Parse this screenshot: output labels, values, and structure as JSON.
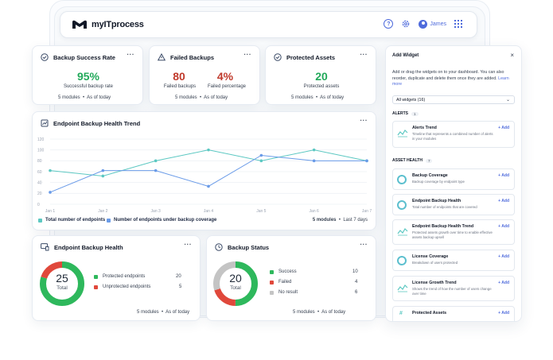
{
  "app": {
    "name": "myITprocess"
  },
  "topbar": {
    "help_icon": "question-icon",
    "settings_icon": "gear-icon",
    "user_name": "James",
    "apps_icon": "grid-icon"
  },
  "colors": {
    "accent": "#4f6bdc",
    "success": "#22a95a",
    "danger": "#c0392b",
    "teal": "#5cc8c2",
    "blue": "#6a9be8",
    "gray": "#c8c8c8"
  },
  "kpis": {
    "backup_success": {
      "title": "Backup Success Rate",
      "value": "95%",
      "label": "Successful backup rate",
      "modules": "5 modules",
      "range": "As of today"
    },
    "failed_backups": {
      "title": "Failed Backups",
      "value_count": "80",
      "value_pct": "4%",
      "label_count": "Failed backups",
      "label_pct": "Failed percentage",
      "modules": "5 modules",
      "range": "As of today"
    },
    "protected_assets": {
      "title": "Protected Assets",
      "value": "20",
      "label": "Protected assets",
      "modules": "5 modules",
      "range": "As of today"
    }
  },
  "trend": {
    "title": "Endpoint Backup Health Trend",
    "legend_total": "Total number of endpoints",
    "legend_under": "Number of endpoints under backup coverage",
    "modules": "5 modules",
    "range": "Last 7 days"
  },
  "chart_data": {
    "type": "line",
    "x": [
      "Jan 1",
      "Jan 2",
      "Jan 3",
      "Jan 4",
      "Jan 5",
      "Jan 6",
      "Jan 7"
    ],
    "ylim": [
      0,
      120
    ],
    "yticks": [
      0,
      20,
      40,
      60,
      80,
      100,
      120
    ],
    "series": [
      {
        "name": "Total number of endpoints",
        "color": "#5cc8c2",
        "values": [
          62,
          52,
          80,
          100,
          80,
          100,
          80
        ]
      },
      {
        "name": "Number of endpoints under backup coverage",
        "color": "#6a9be8",
        "values": [
          22,
          62,
          62,
          33,
          90,
          80,
          80
        ]
      }
    ]
  },
  "endpoint_health": {
    "title": "Endpoint Backup Health",
    "total": "25",
    "total_label": "Total",
    "items": [
      {
        "label": "Protected endpoints",
        "value": "20",
        "color": "#2eb85c"
      },
      {
        "label": "Unprotected endpoints",
        "value": "5",
        "color": "#e0483b"
      }
    ],
    "modules": "5 modules",
    "range": "As of today"
  },
  "backup_status": {
    "title": "Backup Status",
    "total": "20",
    "total_label": "Total",
    "items": [
      {
        "label": "Success",
        "value": "10",
        "color": "#2eb85c"
      },
      {
        "label": "Failed",
        "value": "4",
        "color": "#e0483b"
      },
      {
        "label": "No result",
        "value": "6",
        "color": "#c4c4c4"
      }
    ],
    "modules": "5 modules",
    "range": "As of today"
  },
  "add_widget": {
    "title": "Add Widget",
    "close": "×",
    "description": "Add or drag the widgets on to your dashboard. You can also reorder, duplicate and delete them once they are added.",
    "learn_more": "Learn more",
    "filter_value": "All widgets (16)",
    "sections": [
      {
        "name": "ALERTS",
        "count": "1"
      },
      {
        "name": "ASSET HEALTH",
        "count": "7"
      }
    ],
    "add_label": "+ Add",
    "widgets": [
      {
        "title": "Alerts Trend",
        "desc": "Timeline that represents a combined number of alerts in your modules"
      },
      {
        "title": "Backup Coverage",
        "desc": "Backup coverage by endpoint type"
      },
      {
        "title": "Endpoint Backup Health",
        "desc": "Total number of endpoints that are covered"
      },
      {
        "title": "Endpoint Backup Health Trend",
        "desc": "Protected assets growth over time to enable effective assets backup upsell"
      },
      {
        "title": "License Coverage",
        "desc": "Breakdown of users protected"
      },
      {
        "title": "License Growth Trend",
        "desc": "Shows the trend of how the number of users change over time"
      },
      {
        "title": "Protected Assets",
        "desc": ""
      }
    ]
  }
}
